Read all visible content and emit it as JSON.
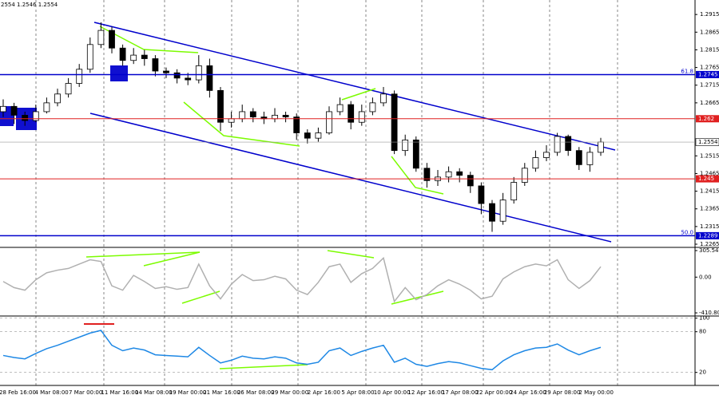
{
  "chart_data": {
    "type": "candlestick",
    "header": "2554 1.2546 1.2554",
    "ylim": [
      1.2256,
      1.2956
    ],
    "yticks": [
      1.2915,
      1.2865,
      1.2815,
      1.2765,
      1.2715,
      1.2665,
      1.2515,
      1.2465,
      1.2415,
      1.2365,
      1.2315,
      1.2265
    ],
    "xlabels": [
      "28 Feb 16:00",
      "4 Mar 08:00",
      "7 Mar 00:00",
      "11 Mar 16:00",
      "14 Mar 08:00",
      "19 Mar 00:00",
      "21 Mar 16:00",
      "26 Mar 08:00",
      "29 Mar 00:00",
      "2 Apr 16:00",
      "5 Apr 08:00",
      "10 Apr 00:00",
      "12 Apr 16:00",
      "17 Apr 08:00",
      "22 Apr 00:00",
      "24 Apr 16:00",
      "29 Apr 08:00",
      "2 May 00:00"
    ],
    "open": [
      1.264,
      1.2655,
      1.263,
      1.2615,
      1.264,
      1.2665,
      1.269,
      1.272,
      1.276,
      1.283,
      1.287,
      1.282,
      1.2785,
      1.28,
      1.279,
      1.2755,
      1.275,
      1.2735,
      1.273,
      1.277,
      1.27,
      1.261,
      1.262,
      1.264,
      1.2625,
      1.262,
      1.263,
      1.2625,
      1.258,
      1.2565,
      1.258,
      1.264,
      1.266,
      1.261,
      1.264,
      1.2665,
      1.269,
      1.253,
      1.256,
      1.248,
      1.2445,
      1.2455,
      1.247,
      1.246,
      1.243,
      1.238,
      1.233,
      1.239,
      1.244,
      1.248,
      1.251,
      1.2525,
      1.257,
      1.253,
      1.249,
      1.2525
    ],
    "high": [
      1.2675,
      1.2665,
      1.264,
      1.266,
      1.268,
      1.2705,
      1.2735,
      1.2775,
      1.285,
      1.2893,
      1.288,
      1.283,
      1.282,
      1.2815,
      1.28,
      1.2765,
      1.276,
      1.275,
      1.28,
      1.279,
      1.271,
      1.264,
      1.266,
      1.265,
      1.264,
      1.265,
      1.264,
      1.2635,
      1.259,
      1.2595,
      1.2655,
      1.268,
      1.267,
      1.266,
      1.268,
      1.271,
      1.27,
      1.2575,
      1.257,
      1.2495,
      1.2475,
      1.2485,
      1.248,
      1.247,
      1.244,
      1.239,
      1.241,
      1.2455,
      1.2495,
      1.253,
      1.2545,
      1.258,
      1.2575,
      1.254,
      1.254,
      1.2566
    ],
    "low": [
      1.2625,
      1.2605,
      1.26,
      1.261,
      1.2635,
      1.2655,
      1.268,
      1.271,
      1.275,
      1.282,
      1.2805,
      1.277,
      1.2775,
      1.277,
      1.274,
      1.2735,
      1.272,
      1.2715,
      1.272,
      1.268,
      1.2585,
      1.2595,
      1.261,
      1.261,
      1.2605,
      1.261,
      1.261,
      1.256,
      1.255,
      1.2555,
      1.2575,
      1.263,
      1.259,
      1.26,
      1.263,
      1.2655,
      1.252,
      1.2515,
      1.247,
      1.2425,
      1.243,
      1.244,
      1.244,
      1.241,
      1.235,
      1.23,
      1.232,
      1.238,
      1.243,
      1.247,
      1.25,
      1.2515,
      1.2515,
      1.2475,
      1.247,
      1.2515
    ],
    "close": [
      1.2655,
      1.263,
      1.2615,
      1.264,
      1.2665,
      1.269,
      1.272,
      1.276,
      1.283,
      1.287,
      1.282,
      1.2785,
      1.28,
      1.279,
      1.2755,
      1.275,
      1.2735,
      1.273,
      1.277,
      1.27,
      1.261,
      1.262,
      1.264,
      1.2625,
      1.262,
      1.263,
      1.2625,
      1.258,
      1.2565,
      1.258,
      1.264,
      1.266,
      1.261,
      1.264,
      1.2665,
      1.269,
      1.253,
      1.256,
      1.248,
      1.2445,
      1.2455,
      1.247,
      1.246,
      1.243,
      1.238,
      1.233,
      1.239,
      1.244,
      1.248,
      1.251,
      1.2525,
      1.257,
      1.253,
      1.249,
      1.2525,
      1.2554
    ],
    "levels": [
      {
        "value": 1.2745,
        "color": "#0000cc",
        "fib": "61.8"
      },
      {
        "value": 1.262,
        "color": "#e02020"
      },
      {
        "value": 1.245,
        "color": "#e02020"
      },
      {
        "value": 1.2289,
        "color": "#0000cc",
        "fib": "50.0"
      }
    ],
    "cci": {
      "color": "#b0b0b0",
      "ylim": [
        -447,
        333
      ],
      "yticks": [
        305.5401,
        {
          "value": 0,
          "label": "0.00"
        },
        -410.803
      ],
      "values": [
        -50,
        -120,
        -150,
        -30,
        50,
        80,
        100,
        150,
        200,
        180,
        -100,
        -150,
        20,
        -50,
        -130,
        -110,
        -140,
        -120,
        150,
        -100,
        -250,
        -80,
        30,
        -40,
        -30,
        10,
        -20,
        -150,
        -200,
        -60,
        120,
        150,
        -60,
        40,
        100,
        220,
        -280,
        -120,
        -260,
        -200,
        -100,
        -30,
        -80,
        -150,
        -250,
        -220,
        -20,
        60,
        120,
        150,
        130,
        200,
        -30,
        -130,
        -40,
        120
      ]
    },
    "rsi": {
      "color": "#1e88e5",
      "ylim": [
        2,
        102
      ],
      "yticks": [
        100,
        80,
        20
      ],
      "values": [
        45,
        42,
        40,
        48,
        55,
        60,
        66,
        72,
        78,
        82,
        60,
        52,
        56,
        53,
        46,
        45,
        44,
        43,
        57,
        45,
        34,
        38,
        44,
        41,
        40,
        43,
        41,
        34,
        32,
        35,
        52,
        56,
        45,
        51,
        56,
        60,
        35,
        41,
        32,
        29,
        33,
        36,
        34,
        30,
        26,
        24,
        37,
        46,
        52,
        56,
        57,
        62,
        53,
        46,
        52,
        57
      ]
    }
  }
}
